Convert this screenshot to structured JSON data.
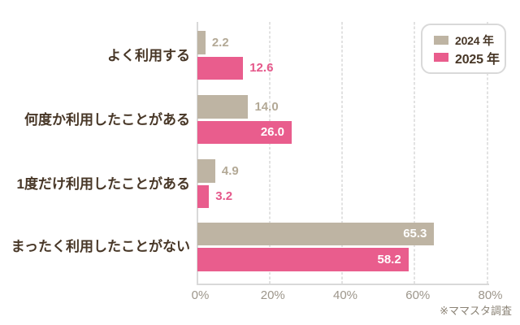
{
  "chart_data": {
    "type": "bar",
    "orientation": "horizontal",
    "categories": [
      "よく利用する",
      "何度か利用したことがある",
      "1度だけ利用したことがある",
      "まったく利用したことがない"
    ],
    "series": [
      {
        "name": "2024 年",
        "color": "#beb4a3",
        "label_color": "#b3a996",
        "values": [
          2.2,
          14.0,
          4.9,
          65.3
        ]
      },
      {
        "name": "2025 年",
        "color": "#e95d8d",
        "label_color": "#e5578a",
        "values": [
          12.6,
          26.0,
          3.2,
          58.2
        ]
      }
    ],
    "value_labels": [
      [
        "2.2",
        "14.0",
        "4.9",
        "65.3"
      ],
      [
        "12.6",
        "26.0",
        "3.2",
        "58.2"
      ]
    ],
    "xlim": [
      0,
      80
    ],
    "x_ticks": [
      {
        "value": 0,
        "label": "0%"
      },
      {
        "value": 20,
        "label": "20%"
      },
      {
        "value": 40,
        "label": "40%"
      },
      {
        "value": 60,
        "label": "60%"
      },
      {
        "value": 80,
        "label": "80%"
      }
    ],
    "grid": "vertical-dashed",
    "legend_position": "top-right",
    "inside_label_color": "#ffffff"
  },
  "legend": {
    "items": [
      {
        "label": "2024 年",
        "color": "#beb4a3"
      },
      {
        "label": "2025 年",
        "color": "#e95d8d"
      }
    ]
  },
  "source_note": "※ママスタ調査",
  "colors": {
    "category_text": "#483727",
    "tick_text": "#9d968b",
    "axis_line": "#d9d9d9",
    "gridline": "#dedede",
    "background": "#ffffff"
  }
}
